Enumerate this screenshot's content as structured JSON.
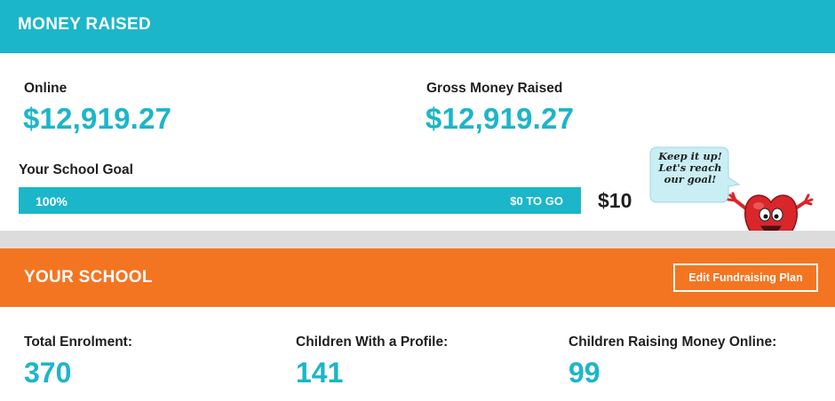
{
  "money_raised": {
    "title": "MONEY RAISED",
    "online_label": "Online",
    "online_amount": "$12,919.27",
    "gross_label": "Gross Money Raised",
    "gross_amount": "$12,919.27",
    "goal_label": "Your School Goal",
    "progress_percent_label": "100%",
    "progress_fraction": 1.0,
    "to_go_label": "$0 TO GO",
    "goal_amount": "$10",
    "mascot_speech_line1": "Keep it up!",
    "mascot_speech_line2": "Let's reach",
    "mascot_speech_line3": "our goal!"
  },
  "your_school": {
    "title": "YOUR SCHOOL",
    "edit_button_label": "Edit Fundraising Plan",
    "stats": [
      {
        "label": "Total Enrolment:",
        "value": "370"
      },
      {
        "label": "Children With a Profile:",
        "value": "141"
      },
      {
        "label": "Children Raising Money Online:",
        "value": "99"
      }
    ]
  },
  "colors": {
    "teal": "#1bb6c9",
    "orange": "#f47521",
    "divider": "#dcdcdc",
    "mascot_red": "#d9262b"
  },
  "icons": [
    "heart-mascot-icon",
    "speech-bubble-icon"
  ]
}
